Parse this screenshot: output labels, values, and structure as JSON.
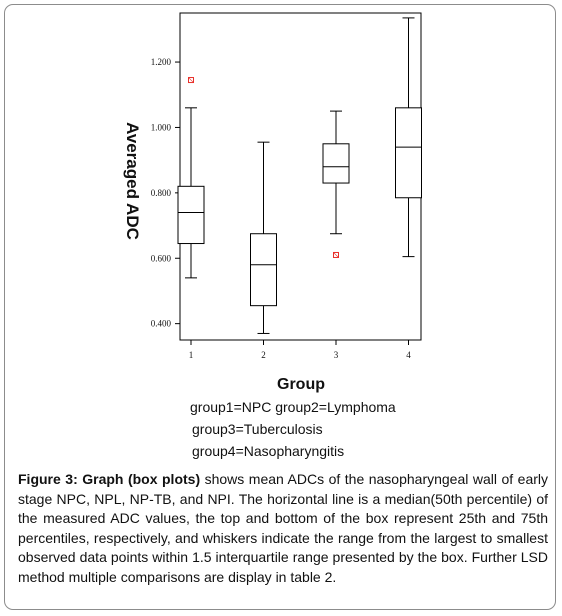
{
  "chart_data": {
    "type": "box",
    "xlabel": "Group",
    "ylabel": "Averaged ADC",
    "categories": [
      "1",
      "2",
      "3",
      "4"
    ],
    "yticks": [
      "0.400",
      "0.600",
      "0.800",
      "1.000",
      "1.200"
    ],
    "ylim": [
      0.35,
      1.35
    ],
    "boxes": [
      {
        "category": "1",
        "whisker_low": 0.54,
        "q1": 0.645,
        "median": 0.74,
        "q3": 0.82,
        "whisker_high": 1.06,
        "outliers": [
          1.145
        ]
      },
      {
        "category": "2",
        "whisker_low": 0.37,
        "q1": 0.455,
        "median": 0.58,
        "q3": 0.675,
        "whisker_high": 0.955,
        "outliers": []
      },
      {
        "category": "3",
        "whisker_low": 0.675,
        "q1": 0.83,
        "median": 0.88,
        "q3": 0.95,
        "whisker_high": 1.05,
        "outliers": [
          0.61
        ]
      },
      {
        "category": "4",
        "whisker_low": 0.605,
        "q1": 0.785,
        "median": 0.94,
        "q3": 1.06,
        "whisker_high": 1.335,
        "outliers": []
      }
    ],
    "legend_lines": [
      "group1=NPC    group2=Lymphoma",
      "group3=Tuberculosis",
      "group4=Nasopharyngitis"
    ]
  },
  "caption": {
    "label": "Figure 3: Graph (box plots)",
    "text": " shows mean ADCs of the nasopharyngeal wall of early stage NPC, NPL, NP-TB, and NPI. The horizontal line is a median(50th percentile) of the measured ADC values, the top and bottom of the box represent 25th and 75th percentiles, respectively, and whiskers indicate the range from the largest to smallest observed data points within 1.5 interquartile range presented by the box. Further LSD method multiple comparisons are display in table 2."
  },
  "colors": {
    "outlier": "#e8302a",
    "line": "#000000"
  }
}
